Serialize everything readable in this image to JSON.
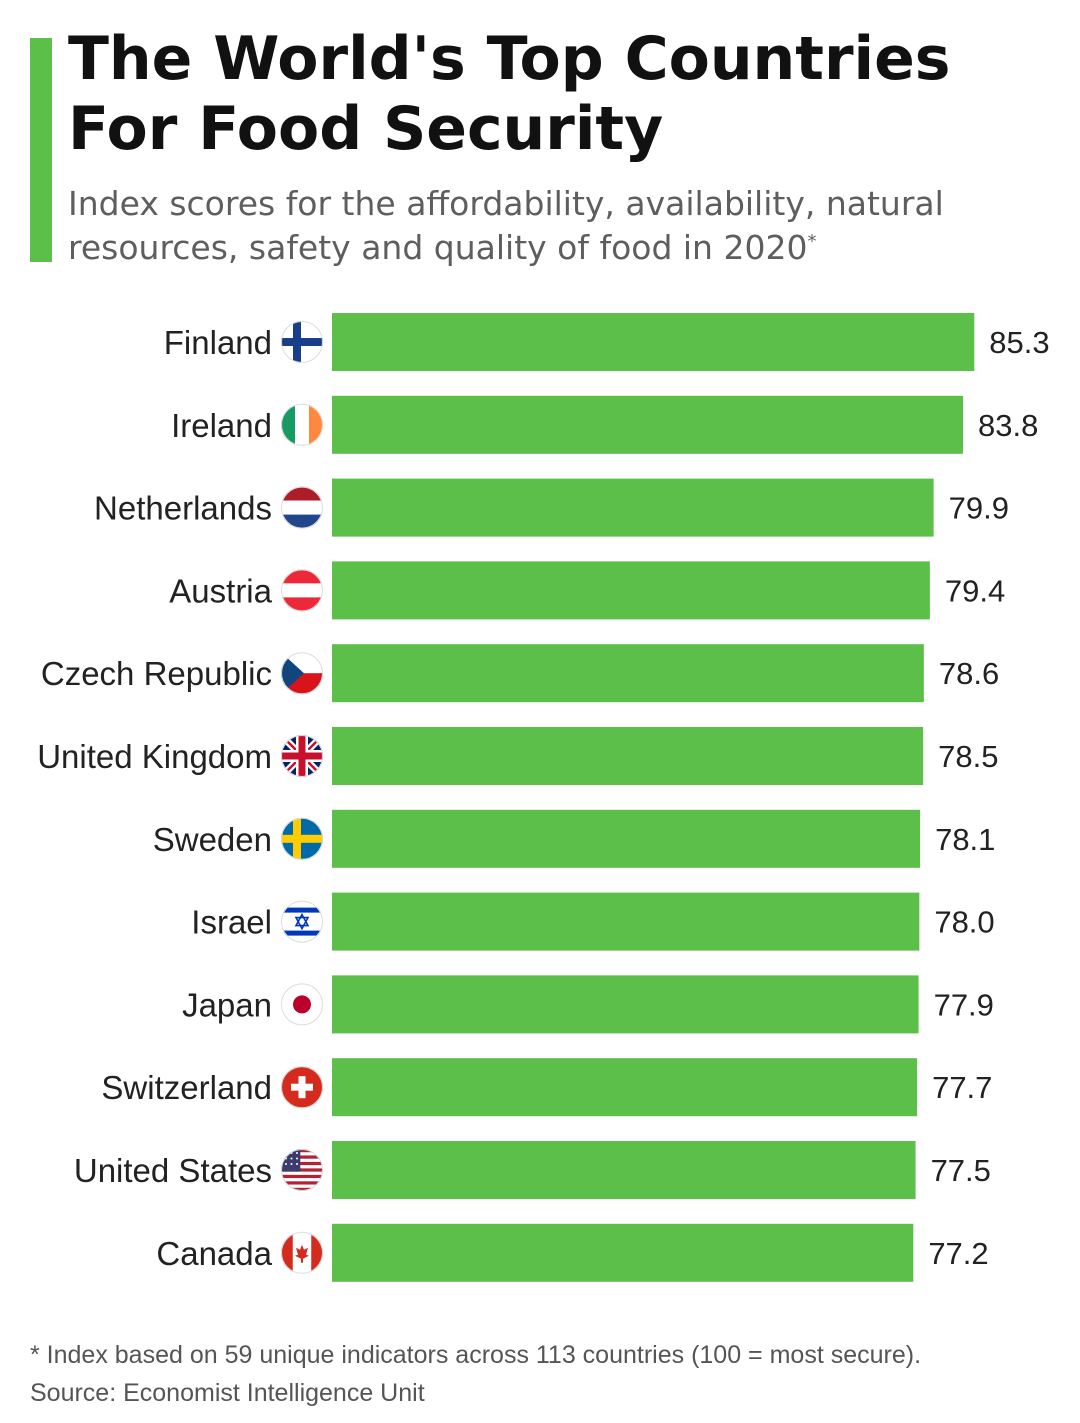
{
  "header": {
    "title_line1": "The World's Top Countries",
    "title_line2": "For Food Security",
    "subtitle_line1": "Index scores for the affordability, availability, natural",
    "subtitle_line2": "resources, safety and quality of food in 2020",
    "subtitle_mark": "*"
  },
  "colors": {
    "accent": "#5cbf4a",
    "bar": "#5cbf4a",
    "text": "#111111"
  },
  "chart_data": {
    "type": "bar",
    "orientation": "horizontal",
    "categories": [
      "Finland",
      "Ireland",
      "Netherlands",
      "Austria",
      "Czech Republic",
      "United Kingdom",
      "Sweden",
      "Israel",
      "Japan",
      "Switzerland",
      "United States",
      "Canada"
    ],
    "values": [
      85.3,
      83.8,
      79.9,
      79.4,
      78.6,
      78.5,
      78.1,
      78.0,
      77.9,
      77.7,
      77.5,
      77.2
    ],
    "value_labels": [
      "85.3",
      "83.8",
      "79.9",
      "79.4",
      "78.6",
      "78.5",
      "78.1",
      "78.0",
      "77.9",
      "77.7",
      "77.5",
      "77.2"
    ],
    "icons": [
      "finland-flag-icon",
      "ireland-flag-icon",
      "netherlands-flag-icon",
      "austria-flag-icon",
      "czech-republic-flag-icon",
      "united-kingdom-flag-icon",
      "sweden-flag-icon",
      "israel-flag-icon",
      "japan-flag-icon",
      "switzerland-flag-icon",
      "united-states-flag-icon",
      "canada-flag-icon"
    ],
    "grid": false,
    "legend": "none"
  },
  "footer": {
    "note": "* Index based on 59 unique indicators across 113 countries (100 = most secure).",
    "source": "Source: Economist Intelligence Unit"
  }
}
